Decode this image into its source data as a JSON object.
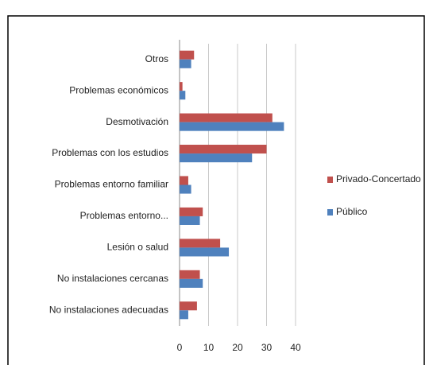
{
  "chart_data": {
    "type": "bar",
    "orientation": "horizontal",
    "categories": [
      "Otros",
      "Problemas económicos",
      "Desmotivación",
      "Problemas con los estudios",
      "Problemas entorno familiar",
      "Problemas entorno...",
      "Lesión o salud",
      "No instalaciones cercanas",
      "No instalaciones adecuadas"
    ],
    "series": [
      {
        "name": "Privado-Concertado",
        "color": "#c0504d",
        "values": [
          5,
          1,
          32,
          30,
          3,
          8,
          14,
          7,
          6
        ]
      },
      {
        "name": "Público",
        "color": "#4f81bd",
        "values": [
          4,
          2,
          36,
          25,
          4,
          7,
          17,
          8,
          3
        ]
      }
    ],
    "xlim": [
      0,
      40
    ],
    "xticks": [
      0,
      10,
      20,
      30,
      40
    ],
    "grid": true,
    "legend": "right"
  }
}
